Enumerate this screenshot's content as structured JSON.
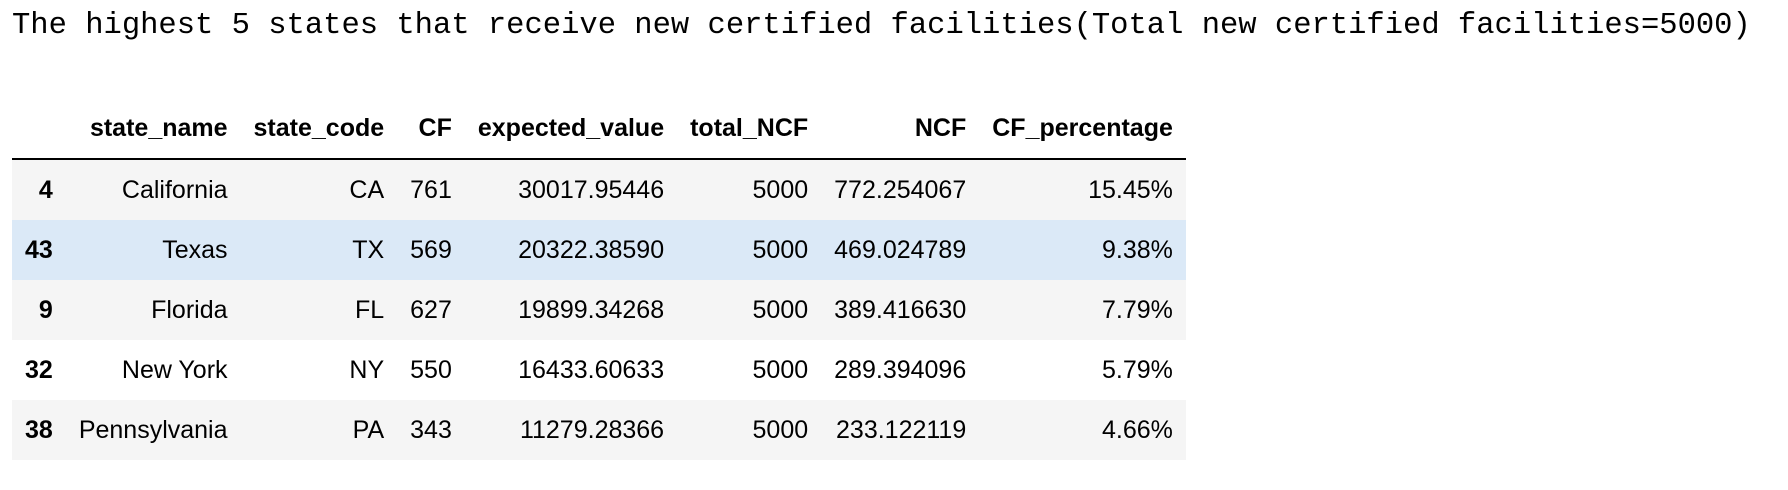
{
  "caption": "The highest 5 states that receive new certified facilities(Total new certified facilities=5000)",
  "table": {
    "index_header": "",
    "columns": [
      "state_name",
      "state_code",
      "CF",
      "expected_value",
      "total_NCF",
      "NCF",
      "CF_percentage"
    ],
    "rows": [
      {
        "index": "4",
        "cells": [
          "California",
          "CA",
          "761",
          "30017.95446",
          "5000",
          "772.254067",
          "15.45%"
        ]
      },
      {
        "index": "43",
        "cells": [
          "Texas",
          "TX",
          "569",
          "20322.38590",
          "5000",
          "469.024789",
          "9.38%"
        ]
      },
      {
        "index": "9",
        "cells": [
          "Florida",
          "FL",
          "627",
          "19899.34268",
          "5000",
          "389.416630",
          "7.79%"
        ]
      },
      {
        "index": "32",
        "cells": [
          "New York",
          "NY",
          "550",
          "16433.60633",
          "5000",
          "289.394096",
          "5.79%"
        ]
      },
      {
        "index": "38",
        "cells": [
          "Pennsylvania",
          "PA",
          "343",
          "11279.28366",
          "5000",
          "233.122119",
          "4.66%"
        ]
      }
    ],
    "hovered_row_index": 1
  },
  "colors": {
    "stripe": "#f5f5f5",
    "hover": "#dbe9f7",
    "header_rule": "#000000"
  }
}
